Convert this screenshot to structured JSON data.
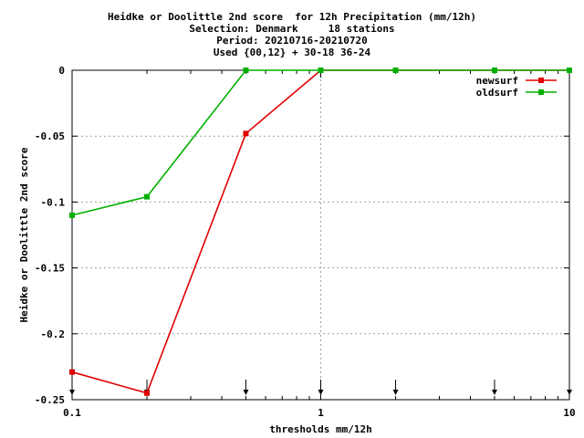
{
  "chart_data": {
    "type": "line",
    "title_lines": [
      "Heidke or Doolittle 2nd score  for 12h Precipitation (mm/12h)",
      "Selection: Denmark     18 stations",
      "Period: 20210716-20210720",
      "Used {00,12} + 30-18 36-24"
    ],
    "xlabel": "thresholds mm/12h",
    "ylabel": "Heidke or Doolittle 2nd score",
    "xscale": "log",
    "xlim": [
      0.1,
      10
    ],
    "ylim": [
      -0.25,
      0
    ],
    "xticks": [
      0.1,
      1,
      10
    ],
    "xtick_labels": [
      "0.1",
      "1",
      "10"
    ],
    "yticks": [
      0,
      -0.05,
      -0.1,
      -0.15,
      -0.2,
      -0.25
    ],
    "ytick_labels": [
      "0",
      "-0.05",
      "-0.1",
      "-0.15",
      "-0.2",
      "-0.25"
    ],
    "grid": true,
    "legend_position": "top-right",
    "threshold_markers": [
      0.1,
      0.2,
      0.5,
      1,
      2,
      5,
      10
    ],
    "series": [
      {
        "name": "newsurf",
        "color": "#e00000",
        "x": [
          0.1,
          0.2,
          0.5,
          1,
          2,
          5,
          10
        ],
        "y": [
          -0.229,
          -0.245,
          -0.048,
          0,
          0,
          0,
          0
        ]
      },
      {
        "name": "oldsurf",
        "color": "#00b000",
        "x": [
          0.1,
          0.2,
          0.5,
          1,
          2,
          5,
          10
        ],
        "y": [
          -0.11,
          -0.096,
          0,
          0,
          0,
          0,
          0
        ]
      }
    ]
  }
}
